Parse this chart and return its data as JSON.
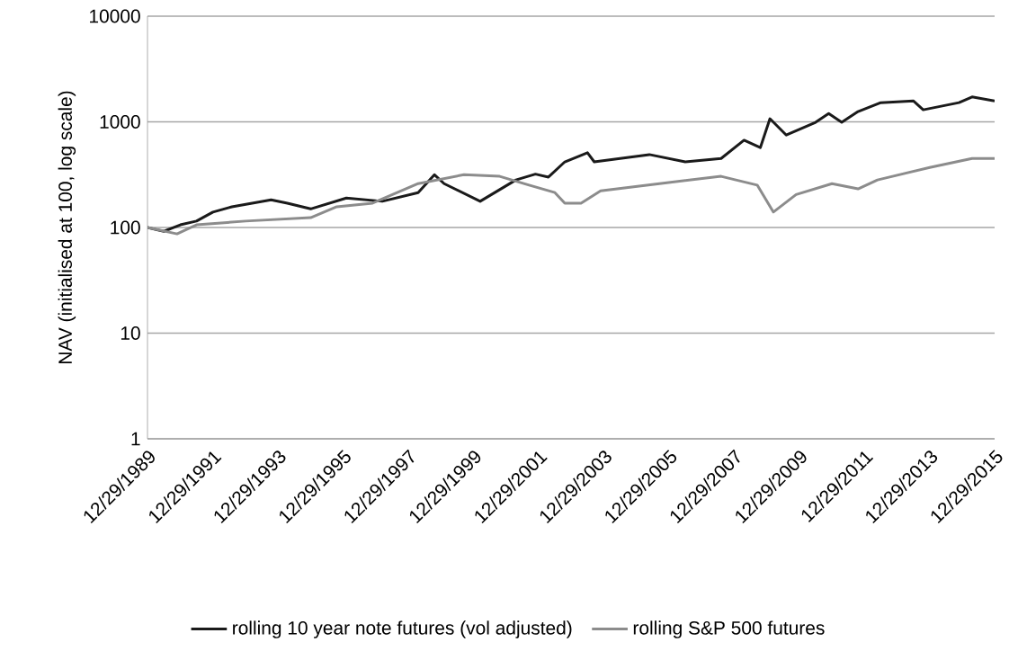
{
  "chart_data": {
    "type": "line",
    "ylabel": "NAV (initialised at 100, log scale)",
    "log": "y",
    "grid": "y",
    "legend": "bottom",
    "marker": "none",
    "line_style": "solid",
    "xlim": [
      "1989-12-29",
      "2015-12-29"
    ],
    "xticks": [
      {
        "value": "1989-12-29",
        "label": "12/29/1989"
      },
      {
        "value": "1991-12-29",
        "label": "12/29/1991"
      },
      {
        "value": "1993-12-29",
        "label": "12/29/1993"
      },
      {
        "value": "1995-12-29",
        "label": "12/29/1995"
      },
      {
        "value": "1997-12-29",
        "label": "12/29/1997"
      },
      {
        "value": "1999-12-29",
        "label": "12/29/1999"
      },
      {
        "value": "2001-12-29",
        "label": "12/29/2001"
      },
      {
        "value": "2003-12-29",
        "label": "12/29/2003"
      },
      {
        "value": "2005-12-29",
        "label": "12/29/2005"
      },
      {
        "value": "2007-12-29",
        "label": "12/29/2007"
      },
      {
        "value": "2009-12-29",
        "label": "12/29/2009"
      },
      {
        "value": "2011-12-29",
        "label": "12/29/2011"
      },
      {
        "value": "2013-12-29",
        "label": "12/29/2013"
      },
      {
        "value": "2015-12-29",
        "label": "12/29/2015"
      }
    ],
    "ylim": [
      1,
      10000
    ],
    "yticks": [
      1,
      10,
      100,
      1000,
      10000
    ],
    "series": [
      {
        "name": "rolling 10 year note futures (vol adjusted)",
        "color": "#1a1a1a",
        "x": [
          "1989-12-29",
          "1990-04-15",
          "1990-07-01",
          "1991-01-01",
          "1991-07-01",
          "1992-01-01",
          "1992-08-01",
          "1993-10-15",
          "1994-04-15",
          "1995-01-01",
          "1996-02-05",
          "1997-03-15",
          "1998-04-20",
          "1998-10-20",
          "1999-02-05",
          "2000-03-15",
          "2001-04-20",
          "2001-11-25",
          "2002-04-20",
          "2002-10-20",
          "2003-07-01",
          "2003-09-15",
          "2005-05-25",
          "2006-07-01",
          "2007-08-07",
          "2008-04-20",
          "2008-10-20",
          "2009-02-05",
          "2009-08-07",
          "2010-07-01",
          "2010-11-25",
          "2011-04-20",
          "2011-10-20",
          "2012-07-01",
          "2013-07-01",
          "2013-10-20",
          "2014-11-25",
          "2015-04-20",
          "2015-12-29"
        ],
        "values": [
          100,
          95,
          92,
          106,
          115,
          140,
          157,
          183,
          170,
          150,
          190,
          177,
          214,
          316,
          260,
          177,
          282,
          320,
          300,
          418,
          510,
          418,
          490,
          418,
          450,
          670,
          570,
          1070,
          750,
          990,
          1200,
          990,
          1250,
          1520,
          1580,
          1300,
          1520,
          1720,
          1580
        ]
      },
      {
        "name": "rolling S&P 500 futures",
        "color": "#8c8c8c",
        "x": [
          "1989-12-29",
          "1990-11-25",
          "1991-07-01",
          "1993-01-01",
          "1995-01-01",
          "1995-10-20",
          "1996-11-25",
          "1998-04-20",
          "1999-09-15",
          "2000-10-20",
          "2001-09-15",
          "2002-07-01",
          "2002-10-20",
          "2003-04-20",
          "2003-11-25",
          "2005-09-15",
          "2007-08-07",
          "2008-09-15",
          "2009-03-15",
          "2009-11-25",
          "2011-01-01",
          "2011-10-20",
          "2012-05-25",
          "2014-01-01",
          "2015-04-20",
          "2015-12-29"
        ],
        "values": [
          100,
          87,
          106,
          115,
          124,
          157,
          170,
          260,
          316,
          305,
          252,
          214,
          170,
          170,
          222,
          260,
          305,
          252,
          140,
          205,
          260,
          232,
          282,
          370,
          450,
          450
        ]
      }
    ]
  }
}
